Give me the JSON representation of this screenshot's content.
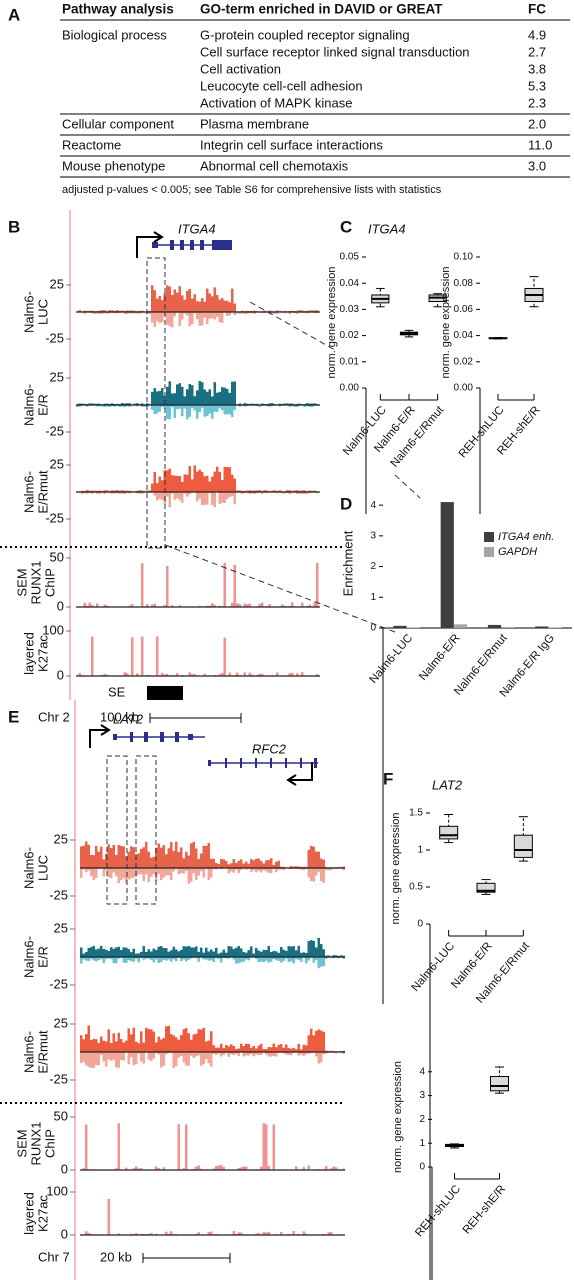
{
  "panels": [
    "A",
    "B",
    "C",
    "D",
    "E",
    "F"
  ],
  "table": {
    "columns": [
      "Pathway analysis",
      "GO-term enriched in DAVID or GREAT",
      "FC"
    ],
    "groups": [
      {
        "category": "Biological process",
        "rows": [
          [
            "G-protein coupled receptor signaling",
            "4.9"
          ],
          [
            "Cell surface receptor linked signal transduction",
            "2.7"
          ],
          [
            "Cell activation",
            "3.8"
          ],
          [
            "Leucocyte cell-cell adhesion",
            "5.3"
          ],
          [
            "Activation of MAPK kinase",
            "2.3"
          ]
        ]
      },
      {
        "category": "Cellular component",
        "rows": [
          [
            "Plasma membrane",
            "2.0"
          ]
        ]
      },
      {
        "category": "Reactome",
        "rows": [
          [
            "Integrin cell surface interactions",
            "11.0"
          ]
        ]
      },
      {
        "category": "Mouse phenotype",
        "rows": [
          [
            "Abnormal cell chemotaxis",
            "3.0"
          ]
        ]
      }
    ],
    "footnote": "adjusted p-values  < 0.005; see Table S6 for comprehensive lists with statistics"
  },
  "genome_views": [
    {
      "genes": [
        "ITGA4"
      ],
      "tracks": [
        {
          "label": [
            "Nalm6-",
            "LUC"
          ],
          "ticks": [
            25,
            -25
          ],
          "color": "#e8634b",
          "color_negative": "#f3a799"
        },
        {
          "label": [
            "Nalm6-",
            "E/R"
          ],
          "ticks": [
            25,
            -25
          ],
          "color": "#1b6f82",
          "color_negative": "#6cc4d6"
        },
        {
          "label": [
            "Nalm6-",
            "E/Rmut"
          ],
          "ticks": [
            25,
            -25
          ],
          "color": "#ee5b3f",
          "color_negative": "#f3a799"
        },
        {
          "label": [
            "SEM",
            "RUNX1",
            "ChIP"
          ],
          "ticks": [
            50,
            0
          ],
          "color": "#f29191"
        },
        {
          "label": [
            "layered",
            "K27ac"
          ],
          "ticks": [
            100,
            0
          ],
          "color": "#f29191"
        }
      ],
      "annotation": "SE",
      "chromosome": "Chr 2",
      "scale": "100 kb"
    },
    {
      "genes": [
        "LAT2",
        "RFC2"
      ],
      "tracks": [
        {
          "label": [
            "Nalm6-",
            "LUC"
          ],
          "ticks": [
            25,
            -25
          ],
          "color": "#e8634b",
          "color_negative": "#f3a799"
        },
        {
          "label": [
            "Nalm6-",
            "E/R"
          ],
          "ticks": [
            25,
            -25
          ],
          "color": "#1b6f82",
          "color_negative": "#6cc4d6"
        },
        {
          "label": [
            "Nalm6-",
            "E/Rmut"
          ],
          "ticks": [
            25,
            -25
          ],
          "color": "#ee5b3f",
          "color_negative": "#f3a799"
        },
        {
          "label": [
            "SEM",
            "RUNX1",
            "ChIP"
          ],
          "ticks": [
            50,
            0
          ],
          "color": "#f29191"
        },
        {
          "label": [
            "layered",
            "K27ac"
          ],
          "ticks": [
            100,
            0
          ],
          "color": "#f29191"
        }
      ],
      "chromosome": "Chr 7",
      "scale": "20 kb"
    }
  ],
  "chart_data": [
    {
      "type": "box",
      "title": "ITGA4",
      "ylabel": "norm. gene expression",
      "categories": [
        "Nalm6-LUC",
        "Nalm6-E/R",
        "Nalm6-E/Rmut"
      ],
      "boxes": [
        {
          "min": 0.031,
          "q1": 0.0325,
          "median": 0.034,
          "q3": 0.0355,
          "max": 0.038
        },
        {
          "min": 0.0195,
          "q1": 0.0203,
          "median": 0.0208,
          "q3": 0.0213,
          "max": 0.022
        },
        {
          "min": 0.031,
          "q1": 0.033,
          "median": 0.0345,
          "q3": 0.0355,
          "max": 0.036
        }
      ],
      "color": "#d9d9d9",
      "ylim": [
        0,
        0.05
      ],
      "yticks": [
        {
          "value": 0,
          "label": "0.00"
        },
        0.01,
        0.02,
        0.03,
        0.04,
        0.05
      ]
    },
    {
      "type": "box",
      "ylabel": "norm. gene expression",
      "categories": [
        "REH-shLUC",
        "REH-shE/R"
      ],
      "boxes": [
        {
          "min": 0.0375,
          "q1": 0.0378,
          "median": 0.038,
          "q3": 0.0382,
          "max": 0.0385
        },
        {
          "min": 0.062,
          "q1": 0.066,
          "median": 0.071,
          "q3": 0.076,
          "max": 0.085
        }
      ],
      "color": "#d9d9d9",
      "ylim": [
        0,
        0.1
      ],
      "yticks": [
        {
          "value": 0,
          "label": "0.00"
        },
        0.02,
        0.04,
        0.06,
        0.08,
        {
          "value": 0.1,
          "label": "0.10"
        }
      ]
    },
    {
      "type": "bar",
      "ylabel": "Enrichment",
      "categories": [
        "Nalm6-LUC",
        "Nalm6-E/R",
        "Nalm6-E/Rmut",
        "Nalm6-E/R IgG"
      ],
      "series": [
        {
          "name": "ITGA4 enh.",
          "color": "#3f3f3f",
          "values": [
            0.07,
            4.1,
            0.1,
            0.05
          ]
        },
        {
          "name": "GAPDH",
          "color": "#a6a6a6",
          "values": [
            0.02,
            0.12,
            0.03,
            0.02
          ]
        }
      ],
      "legend": "upper right",
      "ylim": [
        0,
        4.2
      ],
      "yticks": [
        0,
        1,
        2,
        3,
        4
      ]
    },
    {
      "type": "box",
      "title": "LAT2",
      "ylabel": "norm. gene expression",
      "categories": [
        "Nalm6-LUC",
        "Nalm6-E/R",
        "Nalm6-E/Rmut"
      ],
      "boxes": [
        {
          "min": 1.1,
          "q1": 1.15,
          "median": 1.2,
          "q3": 1.32,
          "max": 1.48
        },
        {
          "min": 0.4,
          "q1": 0.43,
          "median": 0.45,
          "q3": 0.55,
          "max": 0.6
        },
        {
          "min": 0.85,
          "q1": 0.9,
          "median": 1.0,
          "q3": 1.2,
          "max": 1.45
        }
      ],
      "color": "#d9d9d9",
      "ylim": [
        0,
        1.5
      ],
      "yticks": [
        0,
        0.5,
        1,
        1.5
      ]
    },
    {
      "type": "box",
      "ylabel": "norm. gene expression",
      "categories": [
        "REH-shLUC",
        "REH-shE/R"
      ],
      "boxes": [
        {
          "min": 0.8,
          "q1": 0.86,
          "median": 0.9,
          "q3": 0.95,
          "max": 0.97
        },
        {
          "min": 3.1,
          "q1": 3.2,
          "median": 3.4,
          "q3": 3.8,
          "max": 4.2
        }
      ],
      "color": "#d9d9d9",
      "ylim": [
        0,
        4.2
      ],
      "yticks": [
        0,
        1,
        2,
        3,
        4
      ]
    }
  ]
}
